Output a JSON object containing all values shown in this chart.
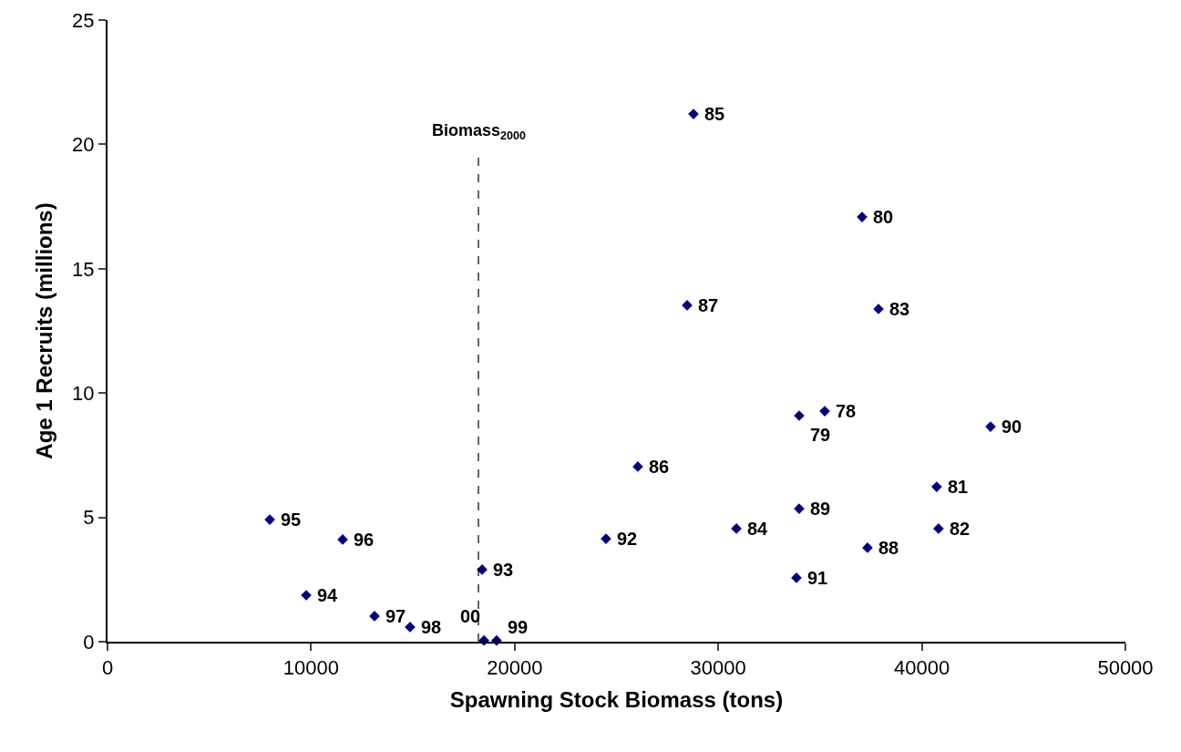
{
  "chart_data": {
    "type": "scatter",
    "xlabel": "Spawning Stock Biomass (tons)",
    "ylabel": "Age 1 Recruits (millions)",
    "x": [
      35230,
      33975,
      37064,
      40730,
      40820,
      37870,
      30890,
      28782,
      26050,
      28470,
      37330,
      33975,
      43375,
      33840,
      24485,
      18400,
      9760,
      7970,
      11550,
      13115,
      14860,
      19110,
      18490
    ],
    "series": [
      {
        "color": "#000080",
        "values": [
          9.27,
          9.09,
          17.08,
          6.23,
          4.55,
          13.38,
          4.55,
          21.22,
          7.04,
          13.53,
          3.78,
          5.35,
          8.65,
          2.57,
          4.14,
          2.9,
          1.87,
          4.91,
          4.11,
          1.03,
          0.59,
          0.05,
          0.05
        ]
      }
    ],
    "xlim": [
      0,
      50000
    ],
    "xticks": [
      0,
      10000,
      20000,
      30000,
      40000,
      50000
    ],
    "ylim": [
      0,
      25
    ],
    "yticks": [
      0,
      5,
      10,
      15,
      20,
      25
    ],
    "marker": "diamond",
    "grid": false,
    "ref_lines": [
      {
        "axis": "x",
        "value": 18220,
        "label": "Biomass$_{2000}$",
        "color": "#000000",
        "line_style": "dashed"
      }
    ],
    "annotations": [
      {
        "text": "78",
        "x": 35230,
        "y": 9.27
      },
      {
        "text": "79",
        "x": 33975,
        "y": 9.09
      },
      {
        "text": "80",
        "x": 37064,
        "y": 17.08
      },
      {
        "text": "81",
        "x": 40730,
        "y": 6.23
      },
      {
        "text": "82",
        "x": 40820,
        "y": 4.55
      },
      {
        "text": "83",
        "x": 37870,
        "y": 13.38
      },
      {
        "text": "84",
        "x": 30890,
        "y": 4.55
      },
      {
        "text": "85",
        "x": 28782,
        "y": 21.22
      },
      {
        "text": "86",
        "x": 26050,
        "y": 7.04
      },
      {
        "text": "87",
        "x": 28470,
        "y": 13.53
      },
      {
        "text": "88",
        "x": 37330,
        "y": 3.78
      },
      {
        "text": "89",
        "x": 33975,
        "y": 5.35
      },
      {
        "text": "90",
        "x": 43375,
        "y": 8.65
      },
      {
        "text": "91",
        "x": 33840,
        "y": 2.57
      },
      {
        "text": "92",
        "x": 24485,
        "y": 4.14
      },
      {
        "text": "93",
        "x": 18400,
        "y": 2.9
      },
      {
        "text": "94",
        "x": 9760,
        "y": 1.87
      },
      {
        "text": "95",
        "x": 7970,
        "y": 4.91
      },
      {
        "text": "96",
        "x": 11550,
        "y": 4.11
      },
      {
        "text": "97",
        "x": 13115,
        "y": 1.03
      },
      {
        "text": "98",
        "x": 14860,
        "y": 0.59
      },
      {
        "text": "99",
        "x": 19110,
        "y": 0.05
      },
      {
        "text": "00",
        "x": 18490,
        "y": 0.05
      }
    ]
  }
}
